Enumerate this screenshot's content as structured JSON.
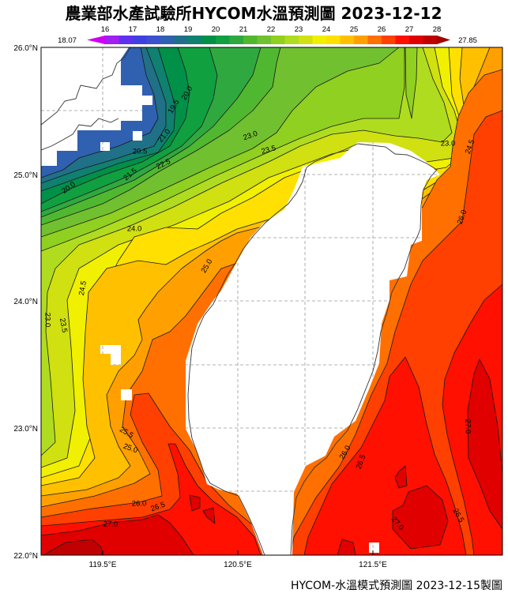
{
  "title": "農業部水產試驗所HYCOM水溫預測圖 2023-12-12",
  "footer": "HYCOM-水溫模式預測圖 2023-12-15製圖",
  "map": {
    "lat_range": [
      22.0,
      26.0
    ],
    "lon_range": [
      119.0,
      122.5
    ],
    "lat_labels": [
      "26.0°N",
      "25.0°N",
      "24.0°N",
      "23.0°N",
      "22.0°N"
    ],
    "lon_labels": [
      "119.5°E",
      "120.5°E",
      "121.5°E"
    ],
    "land_color": "#ffffff",
    "gridlines": "dashed, 0.5° spacing, visible over land"
  },
  "colorbar": {
    "min_label": "18.07",
    "max_label": "27.85",
    "ticks": [
      "16",
      "17",
      "18",
      "19",
      "20",
      "21",
      "22",
      "23",
      "24",
      "25",
      "26",
      "27",
      "28"
    ],
    "interval": 0.5,
    "colors": [
      "#d000f0",
      "#a020f0",
      "#6030f0",
      "#4040e0",
      "#3c50d0",
      "#3060b0",
      "#207088",
      "#108070",
      "#009048",
      "#10a040",
      "#30a840",
      "#50b830",
      "#70c030",
      "#90d020",
      "#b0dc20",
      "#d0e010",
      "#f0f000",
      "#ffe000",
      "#ffc000",
      "#ffa000",
      "#ff7000",
      "#ff4000",
      "#ff1000",
      "#e00000",
      "#c00000",
      "#a00000"
    ]
  },
  "contour_labels": [
    "19.5",
    "20.0",
    "20.5",
    "21.0",
    "21.5",
    "22.5",
    "20.0",
    "23.0",
    "23.5",
    "24.0",
    "25.0",
    "24.5",
    "23.0",
    "23.5",
    "25.5",
    "25.0",
    "26.0",
    "26.5",
    "27.0",
    "23.0",
    "24.5",
    "26.0",
    "26.0",
    "26.5",
    "27.0",
    "27.0",
    "26.5"
  ]
}
